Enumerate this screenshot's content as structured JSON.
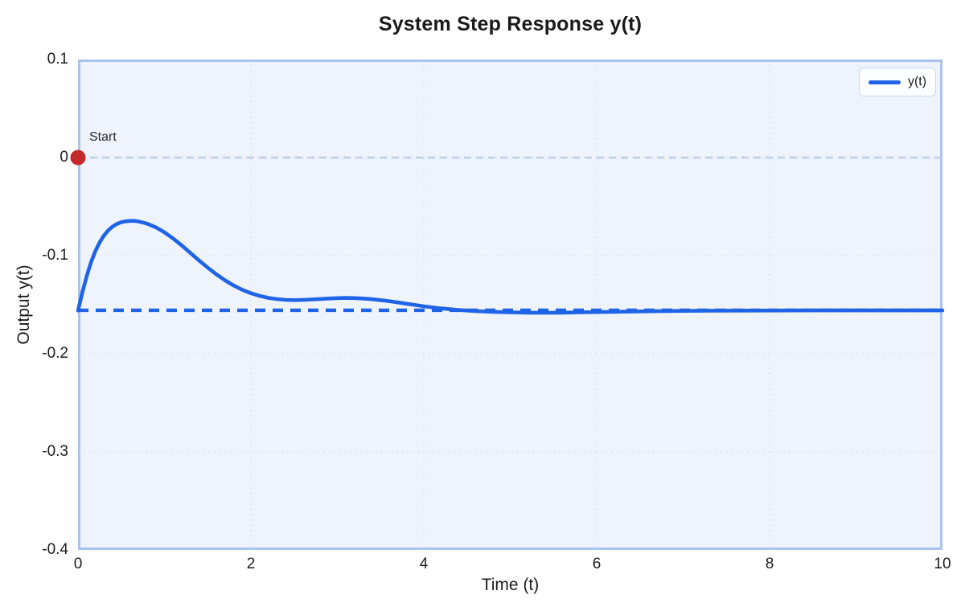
{
  "title": "System Step Response y(t)",
  "legend": {
    "label": "y(t)"
  },
  "annotations": {
    "start_label": "Start"
  },
  "colors": {
    "line": "#1f63e6",
    "steady_line": "#1f63e6",
    "zero_line": "#b9cdf0",
    "grid": "#ccd8ee",
    "plot_bg": "#eef3fc",
    "plot_border": "#a9c3ee",
    "marker": "#c22b2b",
    "text": "#1c1c1c"
  },
  "chart_data": {
    "type": "line",
    "title": "System Step Response y(t)",
    "xlabel": "Time (t)",
    "ylabel": "Output y(t)",
    "xlim": [
      0,
      10
    ],
    "ylim": [
      -0.4,
      0.1
    ],
    "xticks": [
      0,
      2,
      4,
      6,
      8,
      10
    ],
    "xtick_labels": [
      "0",
      "2",
      "4",
      "6",
      "8",
      "10"
    ],
    "yticks": [
      0.1,
      0,
      -0.1,
      -0.2,
      -0.3,
      -0.4
    ],
    "ytick_labels": [
      "0.1",
      "0",
      "-0.1",
      "-0.2",
      "-0.3",
      "-0.4"
    ],
    "grid": true,
    "grid_style": "dotted",
    "legend_position": "upper right",
    "series": [
      {
        "name": "y(t)",
        "points": [
          [
            0,
            -0.156
          ],
          [
            0.05,
            -0.1375
          ],
          [
            0.1,
            -0.121
          ],
          [
            0.15,
            -0.107
          ],
          [
            0.2,
            -0.0955
          ],
          [
            0.25,
            -0.0865
          ],
          [
            0.3,
            -0.0795
          ],
          [
            0.35,
            -0.0742
          ],
          [
            0.4,
            -0.0703
          ],
          [
            0.45,
            -0.0676
          ],
          [
            0.5,
            -0.0659
          ],
          [
            0.55,
            -0.065
          ],
          [
            0.6,
            -0.0646
          ],
          [
            0.65,
            -0.0645
          ],
          [
            0.7,
            -0.0652
          ],
          [
            0.8,
            -0.0674
          ],
          [
            0.9,
            -0.0711
          ],
          [
            1,
            -0.0762
          ],
          [
            1.1,
            -0.0825
          ],
          [
            1.2,
            -0.0896
          ],
          [
            1.3,
            -0.0972
          ],
          [
            1.4,
            -0.1049
          ],
          [
            1.5,
            -0.1122
          ],
          [
            1.6,
            -0.119
          ],
          [
            1.7,
            -0.1251
          ],
          [
            1.8,
            -0.1304
          ],
          [
            1.9,
            -0.1348
          ],
          [
            2,
            -0.1383
          ],
          [
            2.1,
            -0.141
          ],
          [
            2.2,
            -0.143
          ],
          [
            2.3,
            -0.1443
          ],
          [
            2.4,
            -0.1451
          ],
          [
            2.5,
            -0.1453
          ],
          [
            2.6,
            -0.1451
          ],
          [
            2.7,
            -0.1447
          ],
          [
            2.8,
            -0.1442
          ],
          [
            2.9,
            -0.1437
          ],
          [
            3,
            -0.1433
          ],
          [
            3.1,
            -0.1431
          ],
          [
            3.2,
            -0.1433
          ],
          [
            3.3,
            -0.1437
          ],
          [
            3.4,
            -0.1444
          ],
          [
            3.5,
            -0.1453
          ],
          [
            3.6,
            -0.1464
          ],
          [
            3.7,
            -0.1477
          ],
          [
            3.8,
            -0.149
          ],
          [
            3.9,
            -0.1503
          ],
          [
            4,
            -0.1516
          ],
          [
            4.2,
            -0.1538
          ],
          [
            4.4,
            -0.1554
          ],
          [
            4.6,
            -0.1565
          ],
          [
            4.8,
            -0.1573
          ],
          [
            5,
            -0.1578
          ],
          [
            5.2,
            -0.1581
          ],
          [
            5.4,
            -0.1582
          ],
          [
            5.6,
            -0.1581
          ],
          [
            5.8,
            -0.1578
          ],
          [
            6,
            -0.1575
          ],
          [
            6.3,
            -0.1571
          ],
          [
            6.6,
            -0.1567
          ],
          [
            7,
            -0.1563
          ],
          [
            7.4,
            -0.1561
          ],
          [
            7.8,
            -0.156
          ],
          [
            8.2,
            -0.1559
          ],
          [
            8.6,
            -0.1558
          ],
          [
            9,
            -0.1558
          ],
          [
            9.5,
            -0.1558
          ],
          [
            10,
            -0.1558
          ]
        ]
      }
    ],
    "reference_lines": [
      {
        "name": "steady-state",
        "y": -0.1557,
        "style": "dashed"
      },
      {
        "name": "zero",
        "y": 0,
        "style": "dashed"
      }
    ],
    "markers": [
      {
        "name": "start",
        "x": 0,
        "y": 0,
        "label": "Start"
      }
    ]
  }
}
